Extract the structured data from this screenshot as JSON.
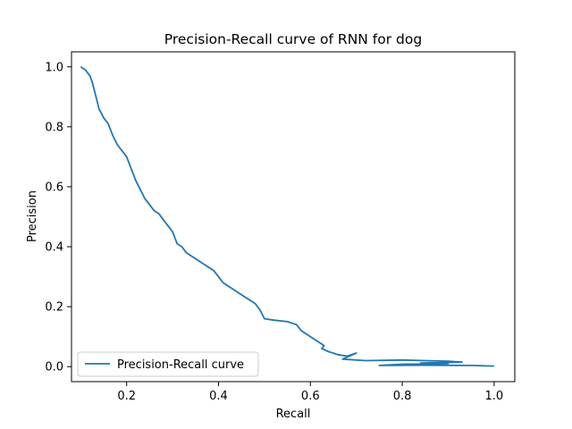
{
  "chart_data": {
    "type": "line",
    "title": "Precision-Recall curve of RNN for dog",
    "xlabel": "Recall",
    "ylabel": "Precision",
    "xlim": [
      0.08,
      1.045
    ],
    "ylim": [
      -0.05,
      1.05
    ],
    "xticks": [
      0.2,
      0.4,
      0.6,
      0.8,
      1.0
    ],
    "xtick_labels": [
      "0.2",
      "0.4",
      "0.6",
      "0.8",
      "1.0"
    ],
    "yticks": [
      0.0,
      0.2,
      0.4,
      0.6,
      0.8,
      1.0
    ],
    "ytick_labels": [
      "0.0",
      "0.2",
      "0.4",
      "0.6",
      "0.8",
      "1.0"
    ],
    "grid": false,
    "legend_position": "lower-left",
    "line_color": "#1f77b4",
    "series": [
      {
        "name": "Precision-Recall curve",
        "x": [
          0.1,
          0.11,
          0.12,
          0.125,
          0.13,
          0.135,
          0.14,
          0.15,
          0.16,
          0.165,
          0.17,
          0.18,
          0.19,
          0.2,
          0.205,
          0.21,
          0.215,
          0.22,
          0.23,
          0.24,
          0.25,
          0.26,
          0.27,
          0.28,
          0.29,
          0.3,
          0.31,
          0.32,
          0.33,
          0.35,
          0.37,
          0.39,
          0.4,
          0.41,
          0.42,
          0.44,
          0.46,
          0.48,
          0.49,
          0.5,
          0.52,
          0.55,
          0.57,
          0.58,
          0.59,
          0.6,
          0.61,
          0.62,
          0.63,
          0.625,
          0.64,
          0.65,
          0.66,
          0.68,
          0.7,
          0.67,
          0.72,
          0.8,
          0.85,
          0.9,
          0.93,
          0.84,
          0.9,
          0.8,
          0.75,
          0.85,
          0.95,
          1.0
        ],
        "y": [
          1.0,
          0.99,
          0.97,
          0.95,
          0.92,
          0.89,
          0.86,
          0.83,
          0.81,
          0.79,
          0.77,
          0.74,
          0.72,
          0.7,
          0.68,
          0.66,
          0.64,
          0.62,
          0.59,
          0.56,
          0.54,
          0.52,
          0.51,
          0.49,
          0.47,
          0.45,
          0.41,
          0.4,
          0.38,
          0.36,
          0.34,
          0.32,
          0.3,
          0.28,
          0.27,
          0.25,
          0.23,
          0.21,
          0.19,
          0.16,
          0.155,
          0.15,
          0.14,
          0.12,
          0.11,
          0.1,
          0.09,
          0.08,
          0.07,
          0.06,
          0.05,
          0.045,
          0.04,
          0.035,
          0.045,
          0.025,
          0.02,
          0.022,
          0.02,
          0.018,
          0.015,
          0.012,
          0.01,
          0.008,
          0.004,
          0.005,
          0.004,
          0.002
        ]
      }
    ]
  }
}
